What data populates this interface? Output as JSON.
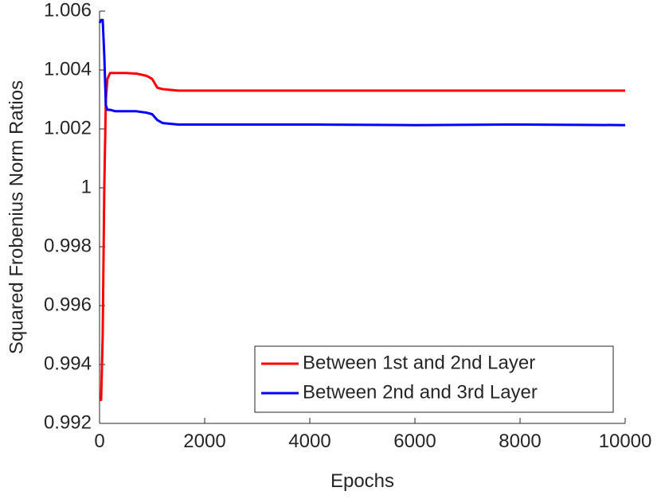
{
  "chart_data": {
    "type": "line",
    "xlabel": "Epochs",
    "ylabel": "Squared Frobenius Norm Ratios",
    "x": [
      0,
      30,
      60,
      90,
      120,
      150,
      200,
      300,
      500,
      700,
      900,
      1000,
      1100,
      1200,
      1500,
      2000,
      4000,
      6000,
      8000,
      10000
    ],
    "series": [
      {
        "name": "Between 1st and 2nd Layer",
        "color": "#ff0000",
        "values": [
          0.9928,
          0.9928,
          0.995,
          1.0,
          1.003,
          1.0037,
          1.0039,
          1.0039,
          1.0039,
          1.00388,
          1.0038,
          1.0037,
          1.0034,
          1.00335,
          1.0033,
          1.0033,
          1.0033,
          1.0033,
          1.0033,
          1.0033
        ]
      },
      {
        "name": "Between 2nd and 3rd Layer",
        "color": "#0000ff",
        "values": [
          1.0056,
          1.0057,
          1.0057,
          1.0045,
          1.0028,
          1.00265,
          1.00265,
          1.0026,
          1.0026,
          1.0026,
          1.00255,
          1.0025,
          1.0023,
          1.0022,
          1.00215,
          1.00215,
          1.00215,
          1.00213,
          1.00215,
          1.00213
        ]
      }
    ],
    "xlim": [
      0,
      10000
    ],
    "xticks": [
      0,
      2000,
      4000,
      6000,
      8000,
      10000
    ],
    "ylim": [
      0.992,
      1.006
    ],
    "yticks": [
      0.992,
      0.994,
      0.996,
      0.998,
      1,
      1.002,
      1.004,
      1.006
    ],
    "legend": "southeast",
    "grid": false
  }
}
